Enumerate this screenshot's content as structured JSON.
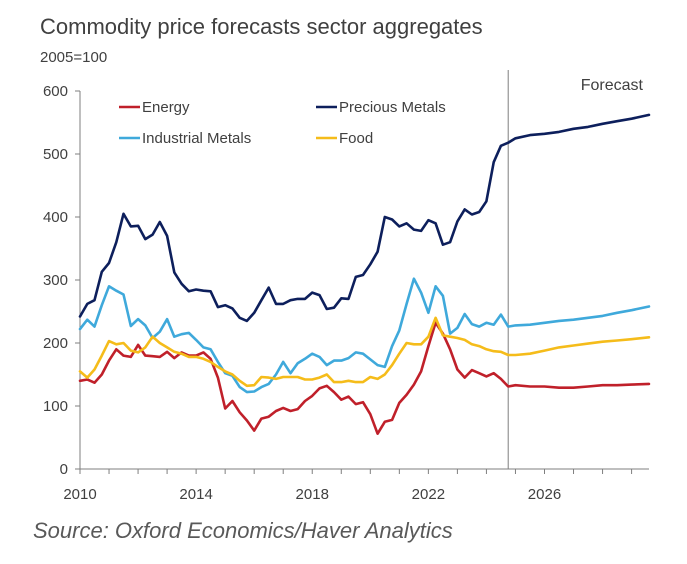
{
  "chart_data": {
    "type": "line",
    "title": "Commodity price forecasts sector aggregates",
    "ylabel": "2005=100",
    "xlabel": "",
    "xlim": [
      2010.0,
      2029.6
    ],
    "ylim": [
      0,
      600
    ],
    "yticks": [
      0,
      100,
      200,
      300,
      400,
      500,
      600
    ],
    "xticks": [
      2010,
      2014,
      2018,
      2022,
      2026
    ],
    "grid": false,
    "legend": "top-left, inside plot, two columns",
    "annotation": {
      "text": "Forecast",
      "x": 2024.75
    },
    "series": [
      {
        "name": "Energy",
        "color": "#C0202A",
        "points": [
          [
            2010.0,
            140
          ],
          [
            2010.25,
            142
          ],
          [
            2010.5,
            137
          ],
          [
            2010.75,
            150
          ],
          [
            2011.0,
            172
          ],
          [
            2011.25,
            190
          ],
          [
            2011.5,
            180
          ],
          [
            2011.75,
            178
          ],
          [
            2012.0,
            197
          ],
          [
            2012.25,
            180
          ],
          [
            2012.5,
            179
          ],
          [
            2012.75,
            178
          ],
          [
            2013.0,
            186
          ],
          [
            2013.25,
            176
          ],
          [
            2013.5,
            185
          ],
          [
            2013.75,
            180
          ],
          [
            2014.0,
            180
          ],
          [
            2014.25,
            185
          ],
          [
            2014.5,
            175
          ],
          [
            2014.75,
            145
          ],
          [
            2015.0,
            96
          ],
          [
            2015.25,
            108
          ],
          [
            2015.5,
            90
          ],
          [
            2015.75,
            77
          ],
          [
            2016.0,
            61
          ],
          [
            2016.25,
            80
          ],
          [
            2016.5,
            83
          ],
          [
            2016.75,
            92
          ],
          [
            2017.0,
            97
          ],
          [
            2017.25,
            92
          ],
          [
            2017.5,
            95
          ],
          [
            2017.75,
            108
          ],
          [
            2018.0,
            116
          ],
          [
            2018.25,
            128
          ],
          [
            2018.5,
            132
          ],
          [
            2018.75,
            122
          ],
          [
            2019.0,
            110
          ],
          [
            2019.25,
            115
          ],
          [
            2019.5,
            103
          ],
          [
            2019.75,
            106
          ],
          [
            2020.0,
            87
          ],
          [
            2020.25,
            56
          ],
          [
            2020.5,
            75
          ],
          [
            2020.75,
            78
          ],
          [
            2021.0,
            105
          ],
          [
            2021.25,
            118
          ],
          [
            2021.5,
            134
          ],
          [
            2021.75,
            155
          ],
          [
            2022.0,
            195
          ],
          [
            2022.25,
            232
          ],
          [
            2022.5,
            215
          ],
          [
            2022.75,
            190
          ],
          [
            2023.0,
            158
          ],
          [
            2023.25,
            145
          ],
          [
            2023.5,
            157
          ],
          [
            2023.75,
            152
          ],
          [
            2024.0,
            147
          ],
          [
            2024.25,
            152
          ],
          [
            2024.5,
            143
          ],
          [
            2024.75,
            131
          ],
          [
            2025.0,
            133
          ],
          [
            2025.5,
            131
          ],
          [
            2026.0,
            131
          ],
          [
            2026.5,
            129
          ],
          [
            2027.0,
            129
          ],
          [
            2027.5,
            131
          ],
          [
            2028.0,
            133
          ],
          [
            2028.5,
            133
          ],
          [
            2029.0,
            134
          ],
          [
            2029.6,
            135
          ]
        ]
      },
      {
        "name": "Precious Metals",
        "color": "#0D1F5C",
        "points": [
          [
            2010.0,
            242
          ],
          [
            2010.25,
            262
          ],
          [
            2010.5,
            268
          ],
          [
            2010.75,
            313
          ],
          [
            2011.0,
            327
          ],
          [
            2011.25,
            360
          ],
          [
            2011.5,
            405
          ],
          [
            2011.75,
            385
          ],
          [
            2012.0,
            386
          ],
          [
            2012.25,
            365
          ],
          [
            2012.5,
            372
          ],
          [
            2012.75,
            392
          ],
          [
            2013.0,
            370
          ],
          [
            2013.25,
            312
          ],
          [
            2013.5,
            294
          ],
          [
            2013.75,
            282
          ],
          [
            2014.0,
            285
          ],
          [
            2014.25,
            283
          ],
          [
            2014.5,
            282
          ],
          [
            2014.75,
            257
          ],
          [
            2015.0,
            260
          ],
          [
            2015.25,
            255
          ],
          [
            2015.5,
            240
          ],
          [
            2015.75,
            235
          ],
          [
            2016.0,
            248
          ],
          [
            2016.25,
            268
          ],
          [
            2016.5,
            288
          ],
          [
            2016.75,
            262
          ],
          [
            2017.0,
            262
          ],
          [
            2017.25,
            268
          ],
          [
            2017.5,
            270
          ],
          [
            2017.75,
            270
          ],
          [
            2018.0,
            280
          ],
          [
            2018.25,
            276
          ],
          [
            2018.5,
            254
          ],
          [
            2018.75,
            256
          ],
          [
            2019.0,
            271
          ],
          [
            2019.25,
            270
          ],
          [
            2019.5,
            305
          ],
          [
            2019.75,
            308
          ],
          [
            2020.0,
            325
          ],
          [
            2020.25,
            345
          ],
          [
            2020.5,
            400
          ],
          [
            2020.75,
            396
          ],
          [
            2021.0,
            385
          ],
          [
            2021.25,
            390
          ],
          [
            2021.5,
            380
          ],
          [
            2021.75,
            378
          ],
          [
            2022.0,
            395
          ],
          [
            2022.25,
            390
          ],
          [
            2022.5,
            356
          ],
          [
            2022.75,
            360
          ],
          [
            2023.0,
            393
          ],
          [
            2023.25,
            412
          ],
          [
            2023.5,
            404
          ],
          [
            2023.75,
            408
          ],
          [
            2024.0,
            425
          ],
          [
            2024.25,
            487
          ],
          [
            2024.5,
            513
          ],
          [
            2024.75,
            518
          ],
          [
            2025.0,
            525
          ],
          [
            2025.5,
            530
          ],
          [
            2026.0,
            532
          ],
          [
            2026.5,
            535
          ],
          [
            2027.0,
            540
          ],
          [
            2027.5,
            543
          ],
          [
            2028.0,
            548
          ],
          [
            2028.5,
            552
          ],
          [
            2029.0,
            556
          ],
          [
            2029.6,
            562
          ]
        ]
      },
      {
        "name": "Industrial Metals",
        "color": "#3FA9DB",
        "points": [
          [
            2010.0,
            222
          ],
          [
            2010.25,
            237
          ],
          [
            2010.5,
            226
          ],
          [
            2010.75,
            260
          ],
          [
            2011.0,
            290
          ],
          [
            2011.25,
            283
          ],
          [
            2011.5,
            277
          ],
          [
            2011.75,
            227
          ],
          [
            2012.0,
            238
          ],
          [
            2012.25,
            228
          ],
          [
            2012.5,
            208
          ],
          [
            2012.75,
            218
          ],
          [
            2013.0,
            238
          ],
          [
            2013.25,
            210
          ],
          [
            2013.5,
            214
          ],
          [
            2013.75,
            216
          ],
          [
            2014.0,
            205
          ],
          [
            2014.25,
            193
          ],
          [
            2014.5,
            190
          ],
          [
            2014.75,
            170
          ],
          [
            2015.0,
            152
          ],
          [
            2015.25,
            148
          ],
          [
            2015.5,
            130
          ],
          [
            2015.75,
            122
          ],
          [
            2016.0,
            123
          ],
          [
            2016.25,
            130
          ],
          [
            2016.5,
            135
          ],
          [
            2016.75,
            150
          ],
          [
            2017.0,
            170
          ],
          [
            2017.25,
            152
          ],
          [
            2017.5,
            168
          ],
          [
            2017.75,
            175
          ],
          [
            2018.0,
            183
          ],
          [
            2018.25,
            178
          ],
          [
            2018.5,
            165
          ],
          [
            2018.75,
            172
          ],
          [
            2019.0,
            172
          ],
          [
            2019.25,
            176
          ],
          [
            2019.5,
            185
          ],
          [
            2019.75,
            183
          ],
          [
            2020.0,
            174
          ],
          [
            2020.25,
            165
          ],
          [
            2020.5,
            162
          ],
          [
            2020.75,
            195
          ],
          [
            2021.0,
            220
          ],
          [
            2021.25,
            262
          ],
          [
            2021.5,
            302
          ],
          [
            2021.75,
            280
          ],
          [
            2022.0,
            248
          ],
          [
            2022.25,
            290
          ],
          [
            2022.5,
            275
          ],
          [
            2022.75,
            215
          ],
          [
            2023.0,
            224
          ],
          [
            2023.25,
            246
          ],
          [
            2023.5,
            230
          ],
          [
            2023.75,
            226
          ],
          [
            2024.0,
            232
          ],
          [
            2024.25,
            229
          ],
          [
            2024.5,
            245
          ],
          [
            2024.75,
            226
          ],
          [
            2025.0,
            228
          ],
          [
            2025.5,
            229
          ],
          [
            2026.0,
            232
          ],
          [
            2026.5,
            235
          ],
          [
            2027.0,
            237
          ],
          [
            2027.5,
            240
          ],
          [
            2028.0,
            243
          ],
          [
            2028.5,
            248
          ],
          [
            2029.0,
            252
          ],
          [
            2029.6,
            258
          ]
        ]
      },
      {
        "name": "Food",
        "color": "#F5BC1A",
        "points": [
          [
            2010.0,
            155
          ],
          [
            2010.25,
            145
          ],
          [
            2010.5,
            158
          ],
          [
            2010.75,
            180
          ],
          [
            2011.0,
            203
          ],
          [
            2011.25,
            198
          ],
          [
            2011.5,
            200
          ],
          [
            2011.75,
            188
          ],
          [
            2012.0,
            185
          ],
          [
            2012.25,
            193
          ],
          [
            2012.5,
            210
          ],
          [
            2012.75,
            200
          ],
          [
            2013.0,
            193
          ],
          [
            2013.25,
            186
          ],
          [
            2013.5,
            183
          ],
          [
            2013.75,
            178
          ],
          [
            2014.0,
            178
          ],
          [
            2014.25,
            175
          ],
          [
            2014.5,
            170
          ],
          [
            2014.75,
            162
          ],
          [
            2015.0,
            155
          ],
          [
            2015.25,
            150
          ],
          [
            2015.5,
            140
          ],
          [
            2015.75,
            132
          ],
          [
            2016.0,
            133
          ],
          [
            2016.25,
            146
          ],
          [
            2016.5,
            145
          ],
          [
            2016.75,
            143
          ],
          [
            2017.0,
            146
          ],
          [
            2017.25,
            146
          ],
          [
            2017.5,
            146
          ],
          [
            2017.75,
            142
          ],
          [
            2018.0,
            142
          ],
          [
            2018.25,
            145
          ],
          [
            2018.5,
            150
          ],
          [
            2018.75,
            138
          ],
          [
            2019.0,
            138
          ],
          [
            2019.25,
            140
          ],
          [
            2019.5,
            138
          ],
          [
            2019.75,
            138
          ],
          [
            2020.0,
            146
          ],
          [
            2020.25,
            143
          ],
          [
            2020.5,
            150
          ],
          [
            2020.75,
            165
          ],
          [
            2021.0,
            183
          ],
          [
            2021.25,
            200
          ],
          [
            2021.5,
            198
          ],
          [
            2021.75,
            198
          ],
          [
            2022.0,
            210
          ],
          [
            2022.25,
            240
          ],
          [
            2022.5,
            212
          ],
          [
            2022.75,
            210
          ],
          [
            2023.0,
            208
          ],
          [
            2023.25,
            205
          ],
          [
            2023.5,
            198
          ],
          [
            2023.75,
            195
          ],
          [
            2024.0,
            190
          ],
          [
            2024.25,
            187
          ],
          [
            2024.5,
            186
          ],
          [
            2024.75,
            181
          ],
          [
            2025.0,
            181
          ],
          [
            2025.5,
            183
          ],
          [
            2026.0,
            188
          ],
          [
            2026.5,
            193
          ],
          [
            2027.0,
            196
          ],
          [
            2027.5,
            199
          ],
          [
            2028.0,
            202
          ],
          [
            2028.5,
            204
          ],
          [
            2029.0,
            206
          ],
          [
            2029.6,
            209
          ]
        ]
      }
    ]
  },
  "footer": {
    "source": "Source: Oxford Economics/Haver Analytics"
  }
}
